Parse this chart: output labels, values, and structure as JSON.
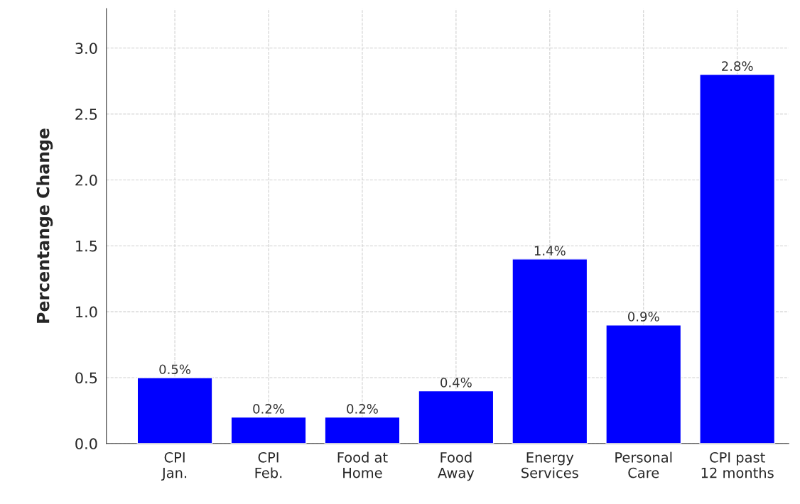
{
  "chart_data": {
    "type": "bar",
    "ylabel": "Percentange Change",
    "categories": [
      "CPI\nJan.",
      "CPI\nFeb.",
      "Food at\nHome",
      "Food\nAway",
      "Energy\nServices",
      "Personal\nCare",
      "CPI past\n12 months"
    ],
    "values": [
      0.5,
      0.2,
      0.2,
      0.4,
      1.4,
      0.9,
      2.8
    ],
    "value_labels": [
      "0.5%",
      "0.2%",
      "0.2%",
      "0.4%",
      "1.4%",
      "0.9%",
      "2.8%"
    ],
    "color": "#0000ff",
    "ylim": [
      0,
      3.3
    ],
    "yticks": [
      {
        "value": 0,
        "label": "0.0"
      },
      0.5,
      {
        "value": 1,
        "label": "1.0"
      },
      1.5,
      {
        "value": 2,
        "label": "2.0"
      },
      2.5,
      {
        "value": 3,
        "label": "3.0"
      }
    ],
    "grid": true
  }
}
